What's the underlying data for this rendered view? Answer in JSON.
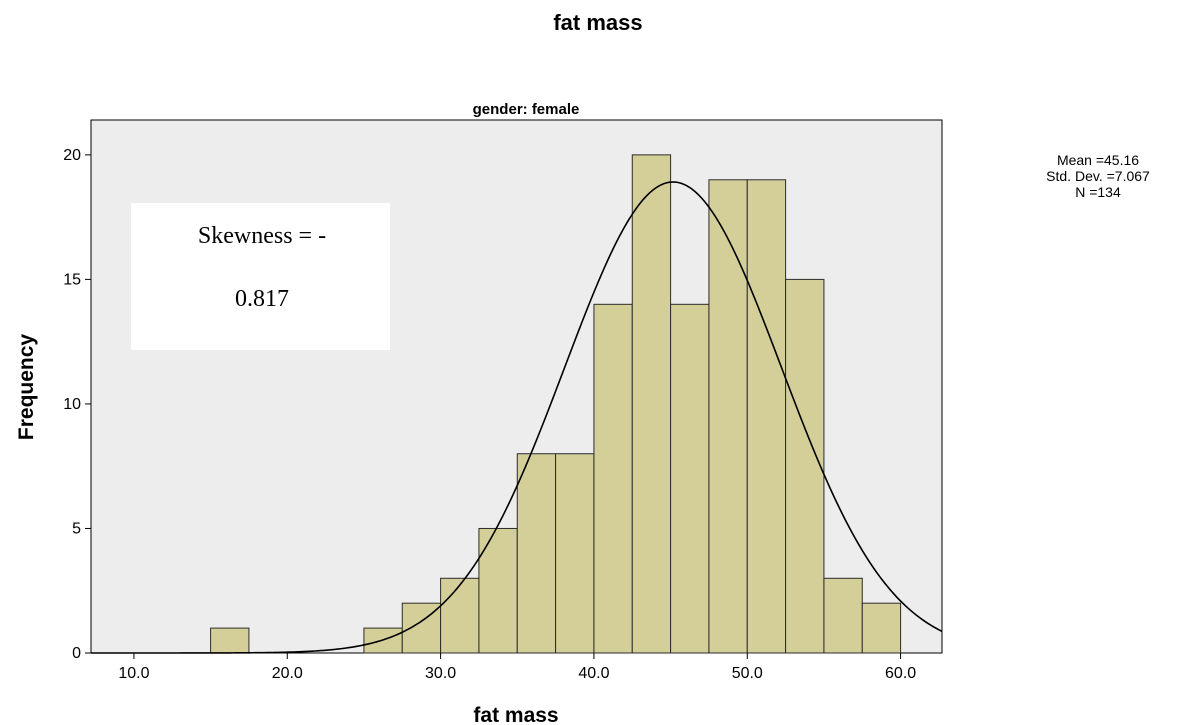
{
  "chart_data": {
    "type": "bar",
    "title": "fat mass",
    "panel_title": "gender: female",
    "xlabel": "fat mass",
    "ylabel": "Frequency",
    "bin_width": 2.5,
    "bins": [
      {
        "start": 15.0,
        "end": 17.5,
        "count": 1
      },
      {
        "start": 25.0,
        "end": 27.5,
        "count": 1
      },
      {
        "start": 27.5,
        "end": 30.0,
        "count": 2
      },
      {
        "start": 30.0,
        "end": 32.5,
        "count": 3
      },
      {
        "start": 32.5,
        "end": 35.0,
        "count": 5
      },
      {
        "start": 35.0,
        "end": 37.5,
        "count": 8
      },
      {
        "start": 37.5,
        "end": 40.0,
        "count": 8
      },
      {
        "start": 40.0,
        "end": 42.5,
        "count": 14
      },
      {
        "start": 42.5,
        "end": 45.0,
        "count": 20
      },
      {
        "start": 45.0,
        "end": 47.5,
        "count": 14
      },
      {
        "start": 47.5,
        "end": 50.0,
        "count": 19
      },
      {
        "start": 50.0,
        "end": 52.5,
        "count": 19
      },
      {
        "start": 52.5,
        "end": 55.0,
        "count": 15
      },
      {
        "start": 55.0,
        "end": 57.5,
        "count": 3
      },
      {
        "start": 57.5,
        "end": 60.0,
        "count": 2
      }
    ],
    "xlim": [
      7.2,
      62.7
    ],
    "ylim": [
      0,
      21.4
    ],
    "x_ticks": [
      10,
      20,
      30,
      40,
      50,
      60
    ],
    "x_tick_labels": [
      "10.0",
      "20.0",
      "30.0",
      "40.0",
      "50.0",
      "60.0"
    ],
    "y_ticks": [
      0,
      5,
      10,
      15,
      20
    ],
    "y_tick_labels": [
      "0",
      "5",
      "10",
      "15",
      "20"
    ],
    "normal_curve": {
      "mean": 45.16,
      "sd": 7.067,
      "n": 134
    },
    "stats_lines": [
      "Mean =45.16",
      "Std. Dev. =7.067",
      "N =134"
    ],
    "annotation_lines": [
      "Skewness = -",
      "0.817"
    ],
    "colors": {
      "bar_fill": "#d4cf99",
      "bar_stroke": "#2b2b2b",
      "plot_background": "#ededed",
      "curve": "#000000",
      "annotation_box": "#ffffff"
    }
  }
}
